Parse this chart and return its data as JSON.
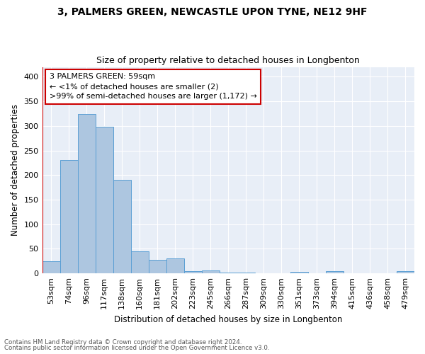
{
  "title1": "3, PALMERS GREEN, NEWCASTLE UPON TYNE, NE12 9HF",
  "title2": "Size of property relative to detached houses in Longbenton",
  "xlabel": "Distribution of detached houses by size in Longbenton",
  "ylabel": "Number of detached properties",
  "footer1": "Contains HM Land Registry data © Crown copyright and database right 2024.",
  "footer2": "Contains public sector information licensed under the Open Government Licence v3.0.",
  "annotation_line1": "3 PALMERS GREEN: 59sqm",
  "annotation_line2": "← <1% of detached houses are smaller (2)",
  "annotation_line3": ">99% of semi-detached houses are larger (1,172) →",
  "bar_labels": [
    "53sqm",
    "74sqm",
    "96sqm",
    "117sqm",
    "138sqm",
    "160sqm",
    "181sqm",
    "202sqm",
    "223sqm",
    "245sqm",
    "266sqm",
    "287sqm",
    "309sqm",
    "330sqm",
    "351sqm",
    "373sqm",
    "394sqm",
    "415sqm",
    "436sqm",
    "458sqm",
    "479sqm"
  ],
  "bar_values": [
    25,
    230,
    325,
    298,
    190,
    45,
    28,
    30,
    5,
    6,
    2,
    1,
    0,
    0,
    3,
    0,
    5,
    0,
    0,
    0,
    4
  ],
  "bar_color": "#adc6e0",
  "bar_edge_color": "#5a9fd4",
  "property_line_color": "#cc0000",
  "ylim": [
    0,
    420
  ],
  "yticks": [
    0,
    50,
    100,
    150,
    200,
    250,
    300,
    350,
    400
  ],
  "background_color": "#e8eef7",
  "annotation_box_color": "#ffffff",
  "annotation_box_edge": "#cc0000",
  "title1_fontsize": 10,
  "title2_fontsize": 9
}
